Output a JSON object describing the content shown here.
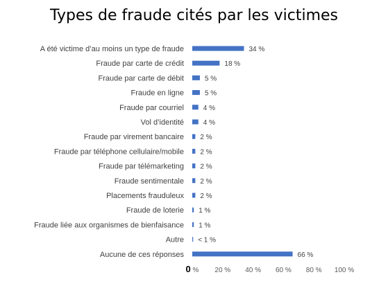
{
  "chart_data": {
    "type": "bar",
    "orientation": "horizontal",
    "title": "Types de fraude cités par les victimes",
    "categories": [
      "A été victime d’au moins un type de fraude",
      "Fraude par carte de crédit",
      "Fraude par carte de débit",
      "Fraude en ligne",
      "Fraude par courriel",
      "Vol d’identité",
      "Fraude par virement bancaire",
      "Fraude par téléphone cellulaire/mobile",
      "Fraude par télémarketing",
      "Fraude sentimentale",
      "Placements frauduleux",
      "Fraude de loterie",
      "Fraude liée aux organismes de bienfaisance",
      "Autre",
      "Aucune de ces réponses"
    ],
    "values": [
      34,
      18,
      5,
      5,
      4,
      4,
      2,
      2,
      2,
      2,
      2,
      1,
      1,
      0.5,
      66
    ],
    "data_labels": [
      "34 %",
      "18 %",
      "5 %",
      "5 %",
      "4 %",
      "4 %",
      "2 %",
      "2 %",
      "2 %",
      "2 %",
      "2 %",
      "1 %",
      "1 %",
      "< 1 %",
      "66 %"
    ],
    "x_ticks": [
      {
        "value": 0,
        "major": "0",
        "suffix": " %"
      },
      {
        "value": 20,
        "major": "",
        "suffix": "20 %"
      },
      {
        "value": 40,
        "major": "",
        "suffix": "40 %"
      },
      {
        "value": 60,
        "major": "",
        "suffix": "60 %"
      },
      {
        "value": 80,
        "major": "",
        "suffix": "80 %"
      },
      {
        "value": 100,
        "major": "",
        "suffix": "100 %"
      }
    ],
    "xlim": [
      0,
      100
    ],
    "bar_color": "#4472C4",
    "grid": false,
    "legend": "none"
  }
}
